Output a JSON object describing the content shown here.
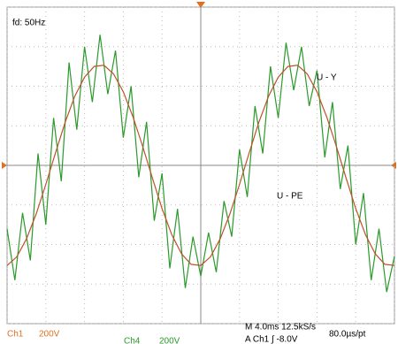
{
  "chart_data": {
    "type": "line",
    "title": "fd: 50Hz",
    "xlim": [
      0,
      10
    ],
    "ylim": [
      -4,
      4
    ],
    "xticks": [
      0,
      1,
      2,
      3,
      4,
      5,
      6,
      7,
      8,
      9,
      10
    ],
    "yticks": [
      -4,
      -3,
      -2,
      -1,
      0,
      1,
      2,
      3,
      4
    ],
    "grid": true,
    "series": [
      {
        "name": "U - Y",
        "color": "#c0502a",
        "x": [
          0,
          0.25,
          0.5,
          0.75,
          1,
          1.25,
          1.5,
          1.75,
          2,
          2.25,
          2.5,
          2.75,
          3,
          3.25,
          3.5,
          3.75,
          4,
          4.25,
          4.5,
          4.75,
          5,
          5.25,
          5.5,
          5.75,
          6,
          6.25,
          6.5,
          6.75,
          7,
          7.25,
          7.5,
          7.75,
          8,
          8.25,
          8.5,
          8.75,
          9,
          9.25,
          9.5,
          9.75,
          10
        ],
        "values": [
          -2.53,
          -2.31,
          -1.86,
          -1.23,
          -0.48,
          0.32,
          1.09,
          1.75,
          2.23,
          2.5,
          2.53,
          2.31,
          1.86,
          1.23,
          0.48,
          -0.32,
          -1.09,
          -1.75,
          -2.23,
          -2.5,
          -2.53,
          -2.31,
          -1.86,
          -1.23,
          -0.48,
          0.32,
          1.09,
          1.75,
          2.23,
          2.5,
          2.53,
          2.31,
          1.86,
          1.23,
          0.48,
          -0.32,
          -1.09,
          -1.75,
          -2.23,
          -2.5,
          -2.53
        ]
      },
      {
        "name": "U - PE",
        "color": "#2a9a2a",
        "x": [
          0,
          0.2,
          0.4,
          0.6,
          0.8,
          1,
          1.2,
          1.4,
          1.6,
          1.8,
          2,
          2.2,
          2.4,
          2.6,
          2.8,
          3,
          3.2,
          3.4,
          3.6,
          3.8,
          4,
          4.2,
          4.4,
          4.6,
          4.8,
          5,
          5.2,
          5.4,
          5.6,
          5.8,
          6,
          6.2,
          6.4,
          6.6,
          6.8,
          7,
          7.2,
          7.4,
          7.6,
          7.8,
          8,
          8.2,
          8.4,
          8.6,
          8.8,
          9,
          9.2,
          9.4,
          9.6,
          9.8,
          10
        ],
        "values": [
          -1.6,
          -2.9,
          -1.2,
          -2.4,
          0.3,
          -1.5,
          1.2,
          -0.4,
          2.6,
          0.9,
          3.0,
          1.6,
          3.3,
          1.8,
          2.9,
          0.7,
          2.0,
          -0.3,
          1.1,
          -1.4,
          -0.2,
          -2.6,
          -1.1,
          -3.1,
          -1.8,
          -2.8,
          -1.7,
          -2.7,
          -0.9,
          -1.8,
          0.4,
          -0.8,
          1.5,
          0.3,
          2.5,
          1.2,
          3.1,
          1.9,
          3.0,
          1.5,
          2.4,
          0.2,
          1.6,
          -0.6,
          0.5,
          -2.0,
          -0.7,
          -2.9,
          -1.6,
          -3.2,
          -2.3
        ]
      }
    ],
    "status": {
      "ch1": "Ch1",
      "ch1_scale": "200V",
      "ch4": "Ch4",
      "ch4_scale": "200V",
      "timebase": "M 4.0ms 12.5kS/s",
      "resolution": "80.0µs/pt",
      "trigger": "A  Ch1  ∫  -8.0V"
    }
  }
}
